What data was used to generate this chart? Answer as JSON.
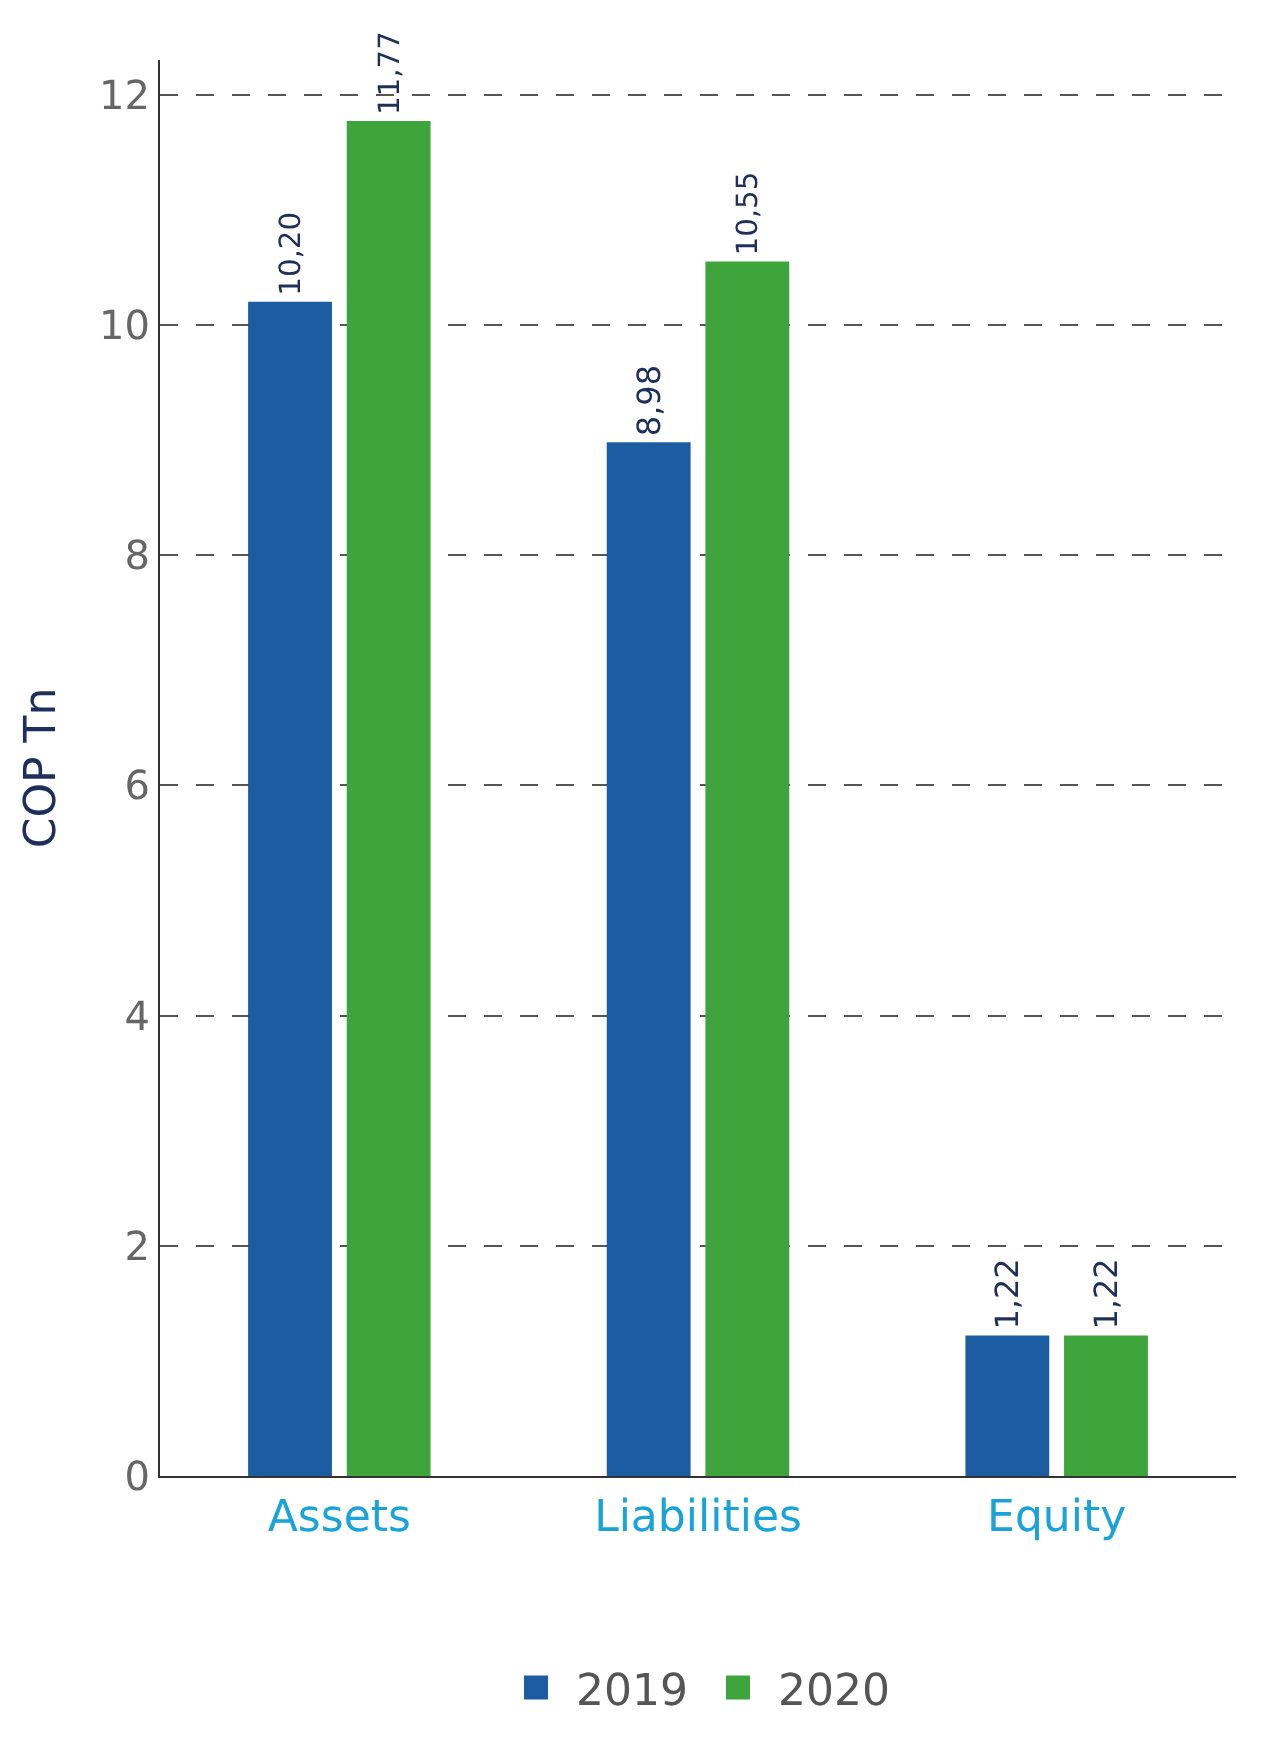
{
  "chart_data": {
    "type": "bar",
    "ylabel": "COP Tn",
    "categories": [
      "Assets",
      "Liabilities",
      "Equity"
    ],
    "series": [
      {
        "name": "2019",
        "color": "#1b5ca3",
        "values": [
          10.2,
          8.98,
          1.22
        ],
        "value_labels": [
          "10,20",
          "8,98",
          "1,22"
        ]
      },
      {
        "name": "2020",
        "color": "#3ea43c",
        "values": [
          11.77,
          10.55,
          1.22
        ],
        "value_labels": [
          "11,77",
          "10,55",
          "1,22"
        ]
      }
    ],
    "ylim": [
      0,
      12.3
    ],
    "yticks": [
      0,
      2,
      4,
      6,
      8,
      10,
      12
    ],
    "grid": "y",
    "legend": "bottom"
  }
}
